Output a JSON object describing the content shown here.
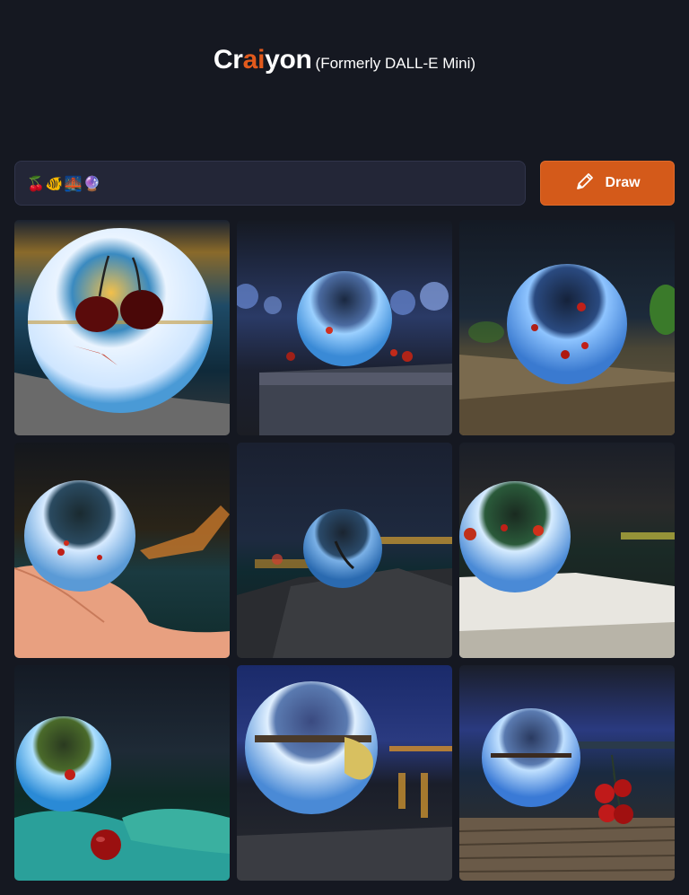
{
  "header": {
    "logo_part1": "Cr",
    "logo_accent1": "a",
    "logo_part2": "i",
    "logo_accent2": "",
    "logo_part3": "yon",
    "tagline": "(Formerly DALL-E Mini)"
  },
  "prompt": {
    "value": "🍒🐠🌉🔮"
  },
  "draw_button": {
    "label": "Draw",
    "icon": "pencil-icon"
  },
  "colors": {
    "accent": "#d45a1a",
    "background": "#151821",
    "input_bg": "#232637"
  },
  "results": {
    "count": 9,
    "images": [
      {
        "subject": "crystal-ball-cherries-sunset"
      },
      {
        "subject": "crystal-ball-on-ledge-blue-lights"
      },
      {
        "subject": "crystal-ball-on-rock-green-leaves"
      },
      {
        "subject": "crystal-ball-in-hand-bridge"
      },
      {
        "subject": "crystal-ball-on-rock-night-harbor"
      },
      {
        "subject": "crystal-ball-on-white-ledge"
      },
      {
        "subject": "crystal-ball-on-leaves-cherry"
      },
      {
        "subject": "crystal-ball-bridge-reflection"
      },
      {
        "subject": "crystal-ball-cherries-on-wood"
      }
    ]
  }
}
